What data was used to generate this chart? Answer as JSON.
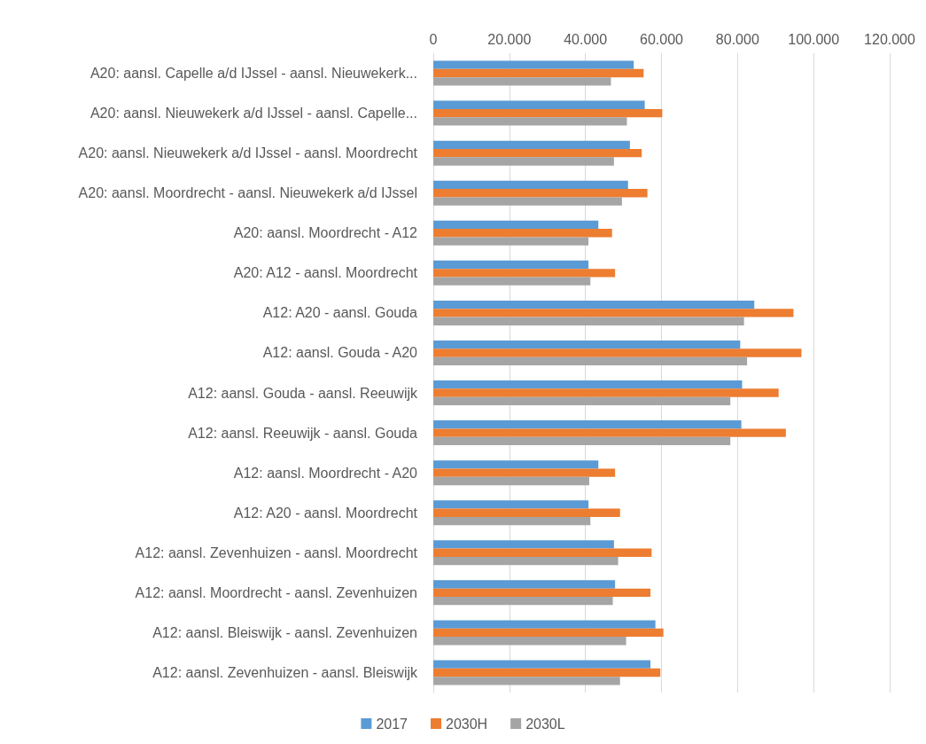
{
  "chart_data": {
    "type": "bar",
    "orientation": "horizontal",
    "categories": [
      "A20: aansl. Capelle a/d IJssel - aansl. Nieuwekerk...",
      "A20: aansl. Nieuwekerk a/d IJssel - aansl. Capelle...",
      "A20: aansl. Nieuwekerk a/d IJssel - aansl. Moordrecht",
      "A20: aansl. Moordrecht - aansl. Nieuwekerk a/d IJssel",
      "A20: aansl. Moordrecht - A12",
      "A20: A12 - aansl. Moordrecht",
      "A12: A20 - aansl. Gouda",
      "A12: aansl. Gouda - A20",
      "A12: aansl. Gouda - aansl. Reeuwijk",
      "A12: aansl. Reeuwijk - aansl. Gouda",
      "A12: aansl. Moordrecht - A20",
      "A12: A20 - aansl. Moordrecht",
      "A12: aansl. Zevenhuizen - aansl. Moordrecht",
      "A12: aansl. Moordrecht - aansl. Zevenhuizen",
      "A12: aansl. Bleiswijk - aansl. Zevenhuizen",
      "A12: aansl. Zevenhuizen - aansl. Bleiswijk"
    ],
    "series": [
      {
        "name": "2017",
        "color": "#5b9bd5",
        "values": [
          52700,
          55600,
          51700,
          51200,
          43400,
          40800,
          84400,
          80700,
          81200,
          81000,
          43400,
          40800,
          47500,
          47800,
          58400,
          57100
        ]
      },
      {
        "name": "2030H",
        "color": "#ed7d31",
        "values": [
          55300,
          60200,
          54800,
          56300,
          47000,
          47800,
          94700,
          96800,
          90800,
          92700,
          47800,
          49100,
          57400,
          57100,
          60500,
          59700
        ]
      },
      {
        "name": "2030L",
        "color": "#a5a5a5",
        "values": [
          46700,
          50900,
          47500,
          49600,
          40800,
          41300,
          81700,
          82500,
          78100,
          78100,
          41000,
          41300,
          48600,
          47200,
          50700,
          49100
        ]
      }
    ],
    "xlim": [
      0,
      120000
    ],
    "xticks": [
      0,
      {
        "value": 20000,
        "label": "20.000"
      },
      {
        "value": 40000,
        "label": "40.000"
      },
      {
        "value": 60000,
        "label": "60.000"
      },
      {
        "value": 80000,
        "label": "80.000"
      },
      {
        "value": 100000,
        "label": "100.000"
      },
      {
        "value": 120000,
        "label": "120.000"
      }
    ],
    "grid": "x",
    "legend": "bottom"
  }
}
